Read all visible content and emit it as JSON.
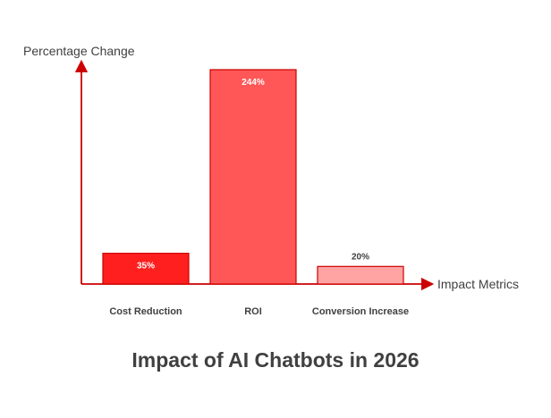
{
  "chart_data": {
    "type": "bar",
    "title": "Impact of AI Chatbots in 2026",
    "ylabel": "Percentage Change",
    "xlabel": "Impact Metrics",
    "categories": [
      "Cost Reduction",
      "ROI",
      "Conversion Increase"
    ],
    "values": [
      35,
      244,
      20
    ],
    "value_labels": [
      "35%",
      "244%",
      "20%"
    ],
    "ylim": [
      0,
      244
    ],
    "grid": false,
    "legend": "none",
    "colors": {
      "bars": [
        "#ff1f1f",
        "#ff5757",
        "#ffa3a3"
      ],
      "bar_stroke": "#cc0000",
      "axis": "#cc0000",
      "text": "#404040"
    }
  }
}
